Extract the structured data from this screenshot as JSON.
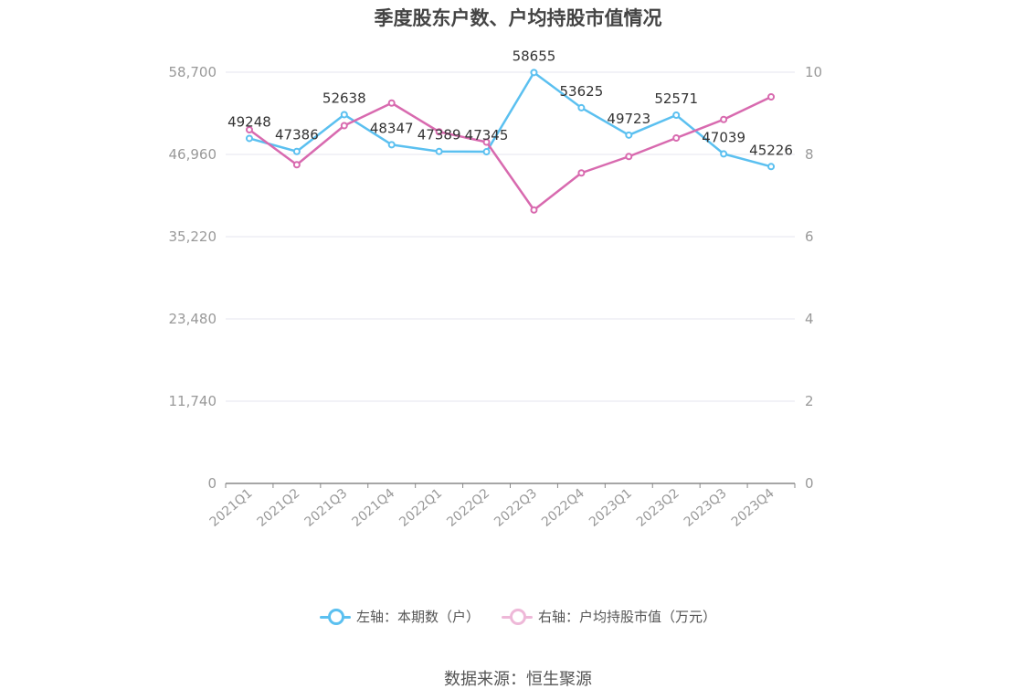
{
  "chart_data": {
    "type": "line",
    "title": "季度股东户数、户均持股市值情况",
    "categories": [
      "2021Q1",
      "2021Q2",
      "2021Q3",
      "2021Q4",
      "2022Q1",
      "2022Q2",
      "2022Q3",
      "2022Q4",
      "2023Q1",
      "2023Q2",
      "2023Q3",
      "2023Q4"
    ],
    "left_axis": {
      "min": 0,
      "max": 58700,
      "ticks": [
        "0",
        "11,740",
        "23,480",
        "35,220",
        "46,960",
        "58,700"
      ]
    },
    "right_axis": {
      "min": 0,
      "max": 10,
      "ticks": [
        "0",
        "2",
        "4",
        "6",
        "8",
        "10"
      ]
    },
    "series": [
      {
        "name": "左轴：本期数（户）",
        "axis": "left",
        "color": "#5bc0f0",
        "values": [
          49248,
          47386,
          52638,
          48347,
          47389,
          47345,
          58655,
          53625,
          49723,
          52571,
          47039,
          45226
        ],
        "labels": [
          "49248",
          "47386",
          "52638",
          "48347",
          "47389",
          "47345",
          "58655",
          "53625",
          "49723",
          "52571",
          "47039",
          "45226"
        ]
      },
      {
        "name": "右轴：户均持股市值（万元）",
        "axis": "right",
        "color": "#d86aaf",
        "values": [
          8.6,
          7.75,
          8.7,
          9.25,
          8.55,
          8.3,
          6.65,
          7.55,
          7.95,
          8.4,
          8.85,
          9.4
        ]
      }
    ],
    "grid": true,
    "legend_position": "bottom"
  },
  "source": "数据来源：恒生聚源"
}
